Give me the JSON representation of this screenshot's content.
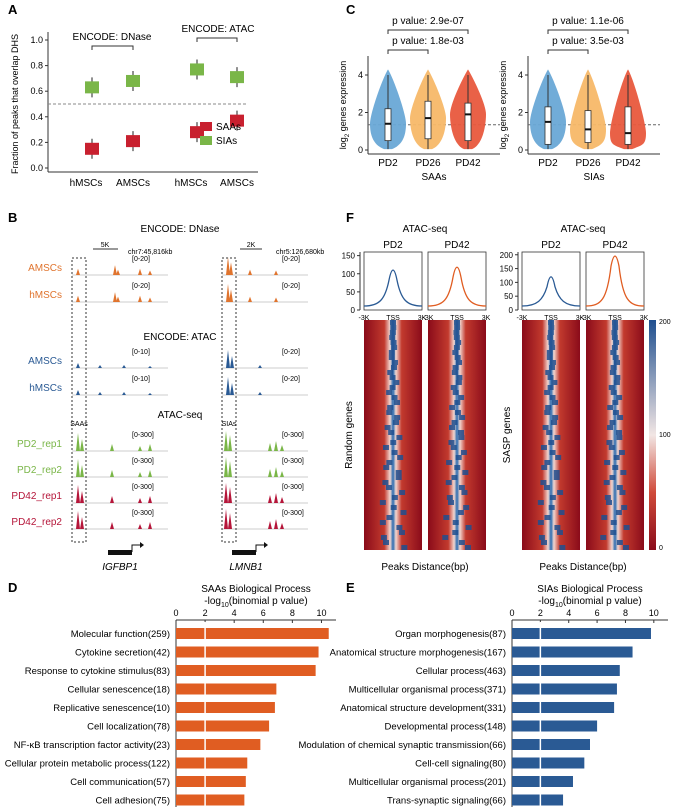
{
  "panels": {
    "A": "A",
    "B": "B",
    "C": "C",
    "D": "D",
    "E": "E",
    "F": "F"
  },
  "chart_data": [
    {
      "id": "A",
      "type": "scatter",
      "title": "",
      "ylabel": "Fraction of peaks that overlap DHS",
      "ylim": [
        0,
        1.0
      ],
      "yticks": [
        "0.0",
        "0.2",
        "0.4",
        "0.6",
        "0.8",
        "1.0"
      ],
      "categories": [
        "hMSCs",
        "AMSCs",
        "hMSCs",
        "AMSCs"
      ],
      "group_labels": [
        "ENCODE: DNase",
        "ENCODE: ATAC"
      ],
      "reference_line": 0.5,
      "series": [
        {
          "name": "SAAs",
          "color": "#c8202f",
          "values": [
            0.15,
            0.21,
            0.28,
            0.37
          ]
        },
        {
          "name": "SIAs",
          "color": "#7ab648",
          "values": [
            0.63,
            0.68,
            0.77,
            0.71
          ]
        }
      ],
      "legend": [
        "SAAs",
        "SIAs"
      ]
    },
    {
      "id": "C",
      "type": "violin",
      "ylabel": "log2 genes expression",
      "ylabel_main": "log",
      "ylabel_sub": "2",
      "ylabel_rest": " genes expression",
      "yticks": [
        "0",
        "2",
        "4"
      ],
      "ylim": [
        0,
        4.8
      ],
      "reference_line": 1.35,
      "plots": [
        {
          "xlabel": "SAAs",
          "categories": [
            "PD2",
            "PD26",
            "PD42"
          ],
          "medians": [
            1.4,
            1.7,
            1.9
          ],
          "q1": [
            0.5,
            0.6,
            0.5
          ],
          "q3": [
            2.2,
            2.6,
            2.5
          ],
          "pvalues": [
            "p value: 2.9e-07",
            "p value: 1.8e-03"
          ]
        },
        {
          "xlabel": "SIAs",
          "categories": [
            "PD2",
            "PD26",
            "PD42"
          ],
          "medians": [
            1.5,
            1.1,
            0.9
          ],
          "q1": [
            0.3,
            0.4,
            0.3
          ],
          "q3": [
            2.3,
            2.1,
            2.3
          ],
          "pvalues": [
            "p value: 1.1e-06",
            "p value: 3.5e-03"
          ]
        }
      ],
      "colors": [
        "#69a8d6",
        "#f7b868",
        "#e8583d"
      ]
    },
    {
      "id": "D",
      "type": "bar",
      "title": "SAAs  Biological Process",
      "xlabel": "-log10(binomial p value)",
      "xlabel_main": "-log",
      "xlabel_sub": "10",
      "xlabel_rest": "(binomial p value)",
      "xlim": [
        0,
        11
      ],
      "xticks": [
        "0",
        "2",
        "4",
        "6",
        "8",
        "10"
      ],
      "reference_line": 2,
      "color": "#e05d22",
      "categories": [
        "Molecular function(259)",
        "Cytokine secretion(42)",
        "Response to cytokine stimulus(83)",
        "Cellular senescence(18)",
        "Replicative senescence(10)",
        "Cell localization(78)",
        "NF-κB transcription factor activity(23)",
        "Cellular protein metabolic process(122)",
        "Cell communication(57)",
        "Cell adhesion(75)"
      ],
      "values": [
        10.5,
        9.8,
        9.6,
        6.9,
        6.8,
        6.4,
        5.8,
        4.9,
        4.8,
        4.7
      ]
    },
    {
      "id": "E",
      "type": "bar",
      "title": "SIAs  Biological Process",
      "xlabel": "-log10(binomial p value)",
      "xlabel_main": "-log",
      "xlabel_sub": "10",
      "xlabel_rest": "(binomial p value)",
      "xlim": [
        0,
        11
      ],
      "xticks": [
        "0",
        "2",
        "4",
        "6",
        "8",
        "10"
      ],
      "reference_line": 2,
      "color": "#2a5a94",
      "categories": [
        "Organ morphogenesis(87)",
        "Anatomical structure morphogenesis(167)",
        "Cellular process(463)",
        "Multicellular organismal process(371)",
        "Anatomical structure development(331)",
        "Developmental process(148)",
        "Modulation of chemical synaptic transmission(66)",
        "Cell-cell signaling(80)",
        "Multicellular organismal process(201)",
        "Trans-synaptic signaling(66)"
      ],
      "values": [
        9.8,
        8.5,
        7.6,
        7.4,
        7.2,
        6.0,
        5.5,
        5.1,
        4.3,
        3.6
      ]
    }
  ],
  "panel_b": {
    "sections": [
      "ENCODE: DNase",
      "ENCODE: ATAC",
      "ATAC-seq"
    ],
    "scale_left": "5K",
    "scale_right": "2K",
    "coord_left": "chr7:45,816kb",
    "coord_right": "chr5:126,680kb",
    "tracks_dnase": [
      {
        "label": "AMSCs",
        "range_l": "[0-20]",
        "range_r": "[0-20]",
        "color": "#e0742e"
      },
      {
        "label": "hMSCs",
        "range_l": "[0-20]",
        "range_r": "[0-20]",
        "color": "#e0742e"
      }
    ],
    "tracks_atac": [
      {
        "label": "AMSCs",
        "range_l": "[0-10]",
        "range_r": "[0-20]",
        "color": "#2a5a94"
      },
      {
        "label": "hMSCs",
        "range_l": "[0-10]",
        "range_r": "[0-20]",
        "color": "#2a5a94"
      }
    ],
    "tracks_seq": [
      {
        "label": "PD2_rep1",
        "range_l": "[0-300]",
        "range_r": "[0-300]",
        "color": "#7ab648"
      },
      {
        "label": "PD2_rep2",
        "range_l": "[0-300]",
        "range_r": "[0-300]",
        "color": "#7ab648"
      },
      {
        "label": "PD42_rep1",
        "range_l": "[0-300]",
        "range_r": "[0-300]",
        "color": "#b5163a"
      },
      {
        "label": "PD42_rep2",
        "range_l": "[0-300]",
        "range_r": "[0-300]",
        "color": "#b5163a"
      }
    ],
    "box_left": "SAAs",
    "box_right": "SIAs",
    "gene_left": "IGFBP1",
    "gene_right": "LMNB1"
  },
  "panel_f": {
    "groups": [
      {
        "title": "ATAC-seq",
        "cols": [
          "PD2",
          "PD42"
        ],
        "row_label": "Random genes",
        "yticks": [
          "0",
          "50",
          "100",
          "150"
        ],
        "peak_heights": [
          110,
          118
        ],
        "ymax": 160
      },
      {
        "title": "ATAC-seq",
        "cols": [
          "PD2",
          "PD42"
        ],
        "row_label": "SASP genes",
        "yticks": [
          "0",
          "50",
          "100",
          "150",
          "200"
        ],
        "peak_heights": [
          120,
          195
        ],
        "ymax": 210
      }
    ],
    "xticks": [
      "-3K",
      "TSS",
      "3K"
    ],
    "xlabel": "Peaks Distance(bp)",
    "colorbar": [
      "200",
      "100",
      "0"
    ],
    "line_colors": [
      "#2a5a94",
      "#e05d22"
    ]
  }
}
